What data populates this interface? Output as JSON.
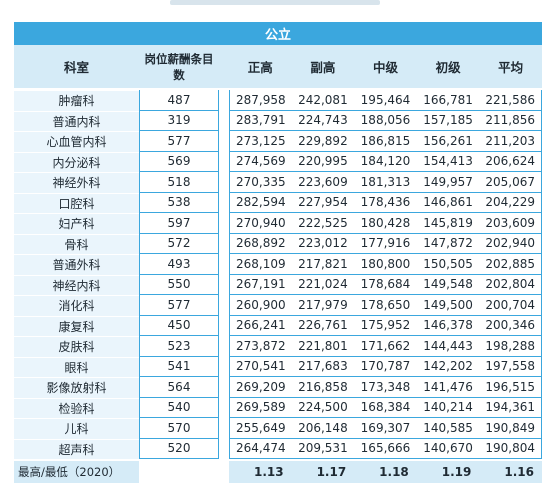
{
  "chart_data": {
    "type": "table",
    "group_header": "公立",
    "columns": [
      "科室",
      "岗位薪酬条目数",
      "正高",
      "副高",
      "中级",
      "初级",
      "平均"
    ],
    "rows": [
      [
        "肿瘤科",
        "487",
        "287,958",
        "242,081",
        "195,464",
        "166,781",
        "221,586"
      ],
      [
        "普通内科",
        "319",
        "283,791",
        "224,743",
        "188,056",
        "157,185",
        "211,856"
      ],
      [
        "心血管内科",
        "577",
        "273,125",
        "229,892",
        "186,815",
        "156,261",
        "211,203"
      ],
      [
        "内分泌科",
        "569",
        "274,569",
        "220,995",
        "184,120",
        "154,413",
        "206,624"
      ],
      [
        "神经外科",
        "518",
        "270,335",
        "223,609",
        "181,313",
        "149,957",
        "205,067"
      ],
      [
        "口腔科",
        "538",
        "282,594",
        "227,954",
        "178,436",
        "146,861",
        "204,229"
      ],
      [
        "妇产科",
        "597",
        "270,940",
        "222,525",
        "180,428",
        "145,819",
        "203,609"
      ],
      [
        "骨科",
        "572",
        "268,892",
        "223,012",
        "177,916",
        "147,872",
        "202,940"
      ],
      [
        "普通外科",
        "493",
        "268,109",
        "217,821",
        "180,800",
        "150,505",
        "202,885"
      ],
      [
        "神经内科",
        "550",
        "267,191",
        "221,024",
        "178,684",
        "149,548",
        "202,804"
      ],
      [
        "消化科",
        "577",
        "260,900",
        "217,979",
        "178,650",
        "149,500",
        "200,704"
      ],
      [
        "康复科",
        "450",
        "266,241",
        "226,761",
        "175,952",
        "146,378",
        "200,346"
      ],
      [
        "皮肤科",
        "523",
        "273,872",
        "221,801",
        "171,662",
        "144,443",
        "198,288"
      ],
      [
        "眼科",
        "541",
        "270,541",
        "217,683",
        "170,787",
        "142,202",
        "197,558"
      ],
      [
        "影像放射科",
        "564",
        "269,209",
        "216,858",
        "173,348",
        "141,476",
        "196,515"
      ],
      [
        "检验科",
        "540",
        "269,589",
        "224,500",
        "168,384",
        "140,214",
        "194,361"
      ],
      [
        "儿科",
        "570",
        "255,649",
        "206,148",
        "169,307",
        "140,585",
        "190,849"
      ],
      [
        "超声科",
        "520",
        "264,474",
        "209,531",
        "165,666",
        "140,670",
        "190,804"
      ]
    ],
    "footer": {
      "label": "最高/最低（2020）",
      "ratios": [
        "1.13",
        "1.17",
        "1.18",
        "1.19",
        "1.16"
      ]
    }
  },
  "colors": {
    "accent": "#3ba7de",
    "header_fill": "#d5ebf7",
    "row_fill": "#eaf5fc"
  }
}
